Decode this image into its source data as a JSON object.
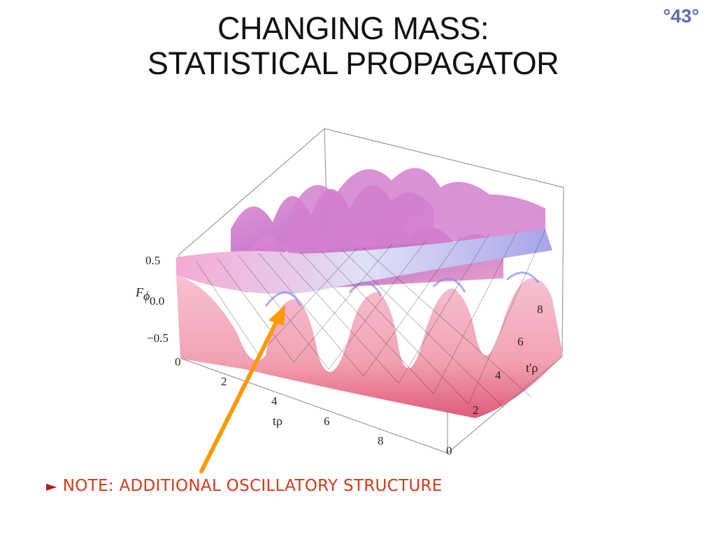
{
  "slide": {
    "title_line1": "CHANGING MASS:",
    "title_line2": "STATISTICAL PROPAGATOR",
    "page_number": "°43°"
  },
  "plot": {
    "z_axis_label": "F",
    "z_axis_subscript": "ϕ",
    "z_ticks": [
      "0.5",
      "0.0",
      "−0.5"
    ],
    "x_axis_label": "tρ",
    "x_ticks": [
      "0",
      "2",
      "4",
      "6",
      "8"
    ],
    "y_axis_label": "t'ρ",
    "y_ticks": [
      "0",
      "2",
      "4",
      "6",
      "8"
    ],
    "surface_color": "#f0a0c8",
    "highlight_color": "#8a8ce8"
  },
  "annotation": {
    "bullet": "►",
    "text": "NOTE: ADDITIONAL OSCILLATORY STRUCTURE",
    "arrow_color": "#ff9900"
  }
}
